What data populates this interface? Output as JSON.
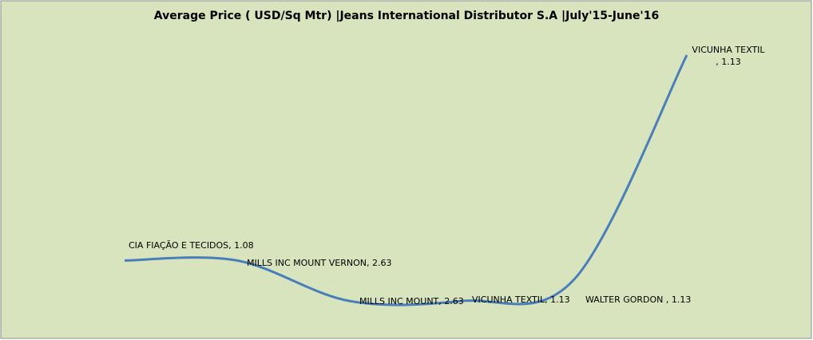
{
  "chart_data": {
    "type": "line",
    "title": "Average Price ( USD/Sq Mtr) |Jeans International Distributor S.A |July'15-June'16",
    "categories": [
      "CIA FIAÇÃO E TECIDOS,  1.08",
      "MILLS INC MOUNT VERNON, 2.63",
      "MILLS INC MOUNT,  2.63",
      "VICUNHA TEXTIL,  1.13",
      "WALTER GORDON  , 1.13",
      "VICUNHA TEXTIL\n, 1.13"
    ],
    "series": [
      {
        "name": "Average Price",
        "color": "#4a7ebb",
        "values": [
          24,
          24,
          11,
          11,
          18,
          90
        ]
      }
    ],
    "ylim": [
      0,
      100
    ],
    "background": "#d7e4bd"
  }
}
